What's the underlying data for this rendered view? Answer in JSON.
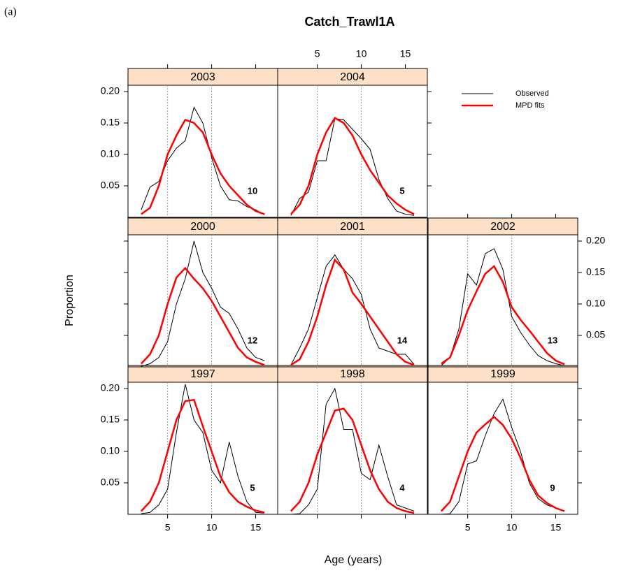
{
  "chart_data": {
    "type": "line",
    "label": "(a)",
    "title": "Catch_Trawl1A",
    "xlabel": "Age (years)",
    "ylabel": "Proportion",
    "xlim": [
      0.5,
      17.5
    ],
    "ylim": [
      0,
      0.21
    ],
    "xticks": [
      5,
      10,
      15
    ],
    "yticks": [
      0.05,
      {
        "value": 0.1,
        "label": "0.10"
      },
      0.15,
      {
        "value": 0.2,
        "label": "0.20"
      }
    ],
    "vlines": [
      5,
      10
    ],
    "legend_position": "upper right",
    "series": [
      {
        "name": "Observed",
        "color": "#000000"
      },
      {
        "name": "MPD fits",
        "color": "#ff0000"
      }
    ],
    "x": [
      2,
      3,
      4,
      5,
      6,
      7,
      8,
      9,
      10,
      11,
      12,
      13,
      14,
      15,
      16
    ],
    "panels": [
      {
        "title": "1997",
        "n": 5,
        "series": [
          {
            "values": [
              0.001,
              0.003,
              0.015,
              0.04,
              0.13,
              0.207,
              0.15,
              0.13,
              0.07,
              0.05,
              0.115,
              0.06,
              0.02,
              0.003,
              0.002
            ]
          },
          {
            "values": [
              0.005,
              0.02,
              0.05,
              0.1,
              0.15,
              0.18,
              0.182,
              0.14,
              0.1,
              0.06,
              0.035,
              0.02,
              0.012,
              0.006,
              0.003
            ]
          }
        ]
      },
      {
        "title": "1998",
        "n": 4,
        "series": [
          {
            "values": [
              0.0,
              0.001,
              0.015,
              0.04,
              0.175,
              0.2,
              0.135,
              0.135,
              0.065,
              0.055,
              0.11,
              0.06,
              0.015,
              0.01,
              0.005
            ]
          },
          {
            "values": [
              0.005,
              0.02,
              0.05,
              0.095,
              0.13,
              0.165,
              0.168,
              0.15,
              0.11,
              0.07,
              0.04,
              0.02,
              0.01,
              0.005,
              0.002
            ]
          }
        ]
      },
      {
        "title": "1999",
        "n": 9,
        "series": [
          {
            "values": [
              0.0,
              0.001,
              0.02,
              0.08,
              0.085,
              0.125,
              0.16,
              0.183,
              0.138,
              0.1,
              0.05,
              0.025,
              0.015,
              0.01,
              0.005
            ]
          },
          {
            "values": [
              0.005,
              0.02,
              0.06,
              0.1,
              0.13,
              0.143,
              0.155,
              0.142,
              0.12,
              0.09,
              0.055,
              0.03,
              0.018,
              0.01,
              0.005
            ]
          }
        ]
      },
      {
        "title": "2000",
        "n": 12,
        "series": [
          {
            "values": [
              0.001,
              0.005,
              0.015,
              0.04,
              0.1,
              0.14,
              0.2,
              0.15,
              0.125,
              0.095,
              0.085,
              0.06,
              0.03,
              0.015,
              0.01
            ]
          },
          {
            "values": [
              0.005,
              0.02,
              0.05,
              0.1,
              0.142,
              0.157,
              0.14,
              0.125,
              0.105,
              0.08,
              0.055,
              0.03,
              0.015,
              0.008,
              0.003
            ]
          }
        ]
      },
      {
        "title": "2001",
        "n": 14,
        "series": [
          {
            "values": [
              0.003,
              0.03,
              0.06,
              0.11,
              0.16,
              0.178,
              0.155,
              0.14,
              0.115,
              0.06,
              0.03,
              0.025,
              0.02,
              0.02,
              0.004
            ]
          },
          {
            "values": [
              0.003,
              0.012,
              0.04,
              0.08,
              0.13,
              0.17,
              0.155,
              0.118,
              0.1,
              0.08,
              0.06,
              0.04,
              0.02,
              0.008,
              0.003
            ]
          }
        ]
      },
      {
        "title": "2002",
        "n": 13,
        "series": [
          {
            "values": [
              0.002,
              0.015,
              0.06,
              0.148,
              0.13,
              0.18,
              0.188,
              0.155,
              0.08,
              0.055,
              0.035,
              0.018,
              0.01,
              0.005,
              0.002
            ]
          },
          {
            "values": [
              0.005,
              0.015,
              0.05,
              0.09,
              0.12,
              0.148,
              0.16,
              0.135,
              0.095,
              0.075,
              0.058,
              0.04,
              0.022,
              0.01,
              0.004
            ]
          }
        ]
      },
      {
        "title": "2003",
        "n": 10,
        "series": [
          {
            "values": [
              0.012,
              0.048,
              0.057,
              0.09,
              0.11,
              0.122,
              0.175,
              0.15,
              0.095,
              0.05,
              0.028,
              0.026,
              0.017,
              0.012,
              0.004
            ]
          },
          {
            "values": [
              0.005,
              0.015,
              0.05,
              0.1,
              0.13,
              0.155,
              0.15,
              0.135,
              0.1,
              0.07,
              0.05,
              0.035,
              0.02,
              0.01,
              0.005
            ]
          }
        ]
      },
      {
        "title": "2004",
        "n": 5,
        "series": [
          {
            "values": [
              0.003,
              0.03,
              0.04,
              0.09,
              0.09,
              0.157,
              0.155,
              0.14,
              0.125,
              0.108,
              0.06,
              0.03,
              0.01,
              0.005,
              0.003
            ]
          },
          {
            "values": [
              0.005,
              0.02,
              0.05,
              0.1,
              0.135,
              0.158,
              0.15,
              0.13,
              0.1,
              0.075,
              0.055,
              0.035,
              0.022,
              0.012,
              0.005
            ]
          }
        ]
      }
    ]
  }
}
